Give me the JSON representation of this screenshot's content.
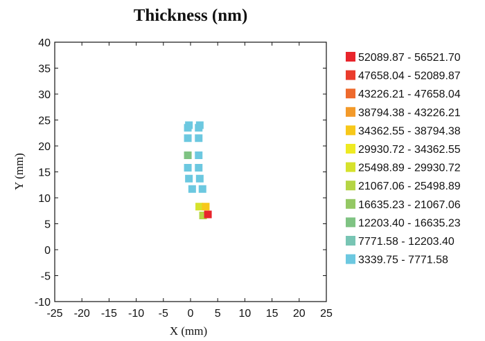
{
  "chart_data": {
    "type": "scatter",
    "title": "Thickness (nm)",
    "xlabel": "X (mm)",
    "ylabel": "Y (mm)",
    "xlim": [
      -25,
      25
    ],
    "ylim": [
      -10,
      40
    ],
    "xticks": [
      -25,
      -20,
      -15,
      -10,
      -5,
      0,
      5,
      10,
      15,
      20,
      25
    ],
    "yticks": [
      -10,
      -5,
      0,
      5,
      10,
      15,
      20,
      25,
      30,
      35,
      40
    ],
    "legend_position": "right",
    "legend": [
      {
        "label": "52089.87 - 56521.70",
        "color": "#e8242b"
      },
      {
        "label": "47658.04 - 52089.87",
        "color": "#ea3c2c"
      },
      {
        "label": "43226.21 - 47658.04",
        "color": "#ee6a2d"
      },
      {
        "label": "38794.38 - 43226.21",
        "color": "#f39a2a"
      },
      {
        "label": "34362.55 - 38794.38",
        "color": "#f7c81a"
      },
      {
        "label": "29930.72 - 34362.55",
        "color": "#eeea22"
      },
      {
        "label": "25498.89 - 29930.72",
        "color": "#d6e22c"
      },
      {
        "label": "21067.06 - 25498.89",
        "color": "#b5d544"
      },
      {
        "label": "16635.23 - 21067.06",
        "color": "#94c864"
      },
      {
        "label": "12203.40 - 16635.23",
        "color": "#7fc383"
      },
      {
        "label": "7771.58 - 12203.40",
        "color": "#78c5b4"
      },
      {
        "label": "3339.75 - 7771.58",
        "color": "#6cc8e0"
      }
    ],
    "points": [
      {
        "x": -0.3,
        "y": 24.0,
        "bin": 11
      },
      {
        "x": 1.7,
        "y": 24.0,
        "bin": 11
      },
      {
        "x": -0.5,
        "y": 23.5,
        "bin": 11
      },
      {
        "x": 1.5,
        "y": 23.5,
        "bin": 11
      },
      {
        "x": -0.5,
        "y": 21.5,
        "bin": 11
      },
      {
        "x": 1.5,
        "y": 21.5,
        "bin": 11
      },
      {
        "x": -0.5,
        "y": 18.2,
        "bin": 9
      },
      {
        "x": 1.5,
        "y": 18.2,
        "bin": 11
      },
      {
        "x": -0.5,
        "y": 15.8,
        "bin": 11
      },
      {
        "x": 1.5,
        "y": 15.8,
        "bin": 11
      },
      {
        "x": -0.3,
        "y": 13.7,
        "bin": 11
      },
      {
        "x": 1.7,
        "y": 13.7,
        "bin": 11
      },
      {
        "x": 0.3,
        "y": 11.7,
        "bin": 11
      },
      {
        "x": 2.2,
        "y": 11.7,
        "bin": 11
      },
      {
        "x": 1.6,
        "y": 8.3,
        "bin": 6
      },
      {
        "x": 2.8,
        "y": 8.3,
        "bin": 4
      },
      {
        "x": 2.3,
        "y": 6.6,
        "bin": 7
      },
      {
        "x": 3.2,
        "y": 6.8,
        "bin": 0
      }
    ]
  }
}
